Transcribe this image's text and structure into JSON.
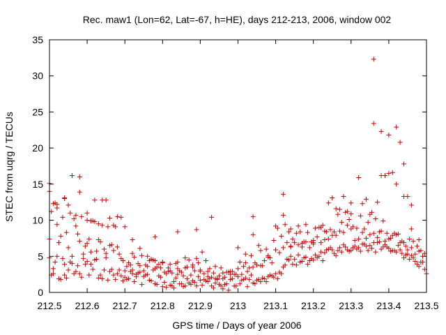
{
  "chart_data": {
    "type": "scatter",
    "title": "Rec. maw1 (Lon=62, Lat=-67, h=HE), days 212-213, 2006, window 002",
    "xlabel": "GPS time / Days of year 2006",
    "ylabel": "STEC from uqrg / TECUs",
    "xlim": [
      212.5,
      213.5
    ],
    "ylim": [
      0,
      35
    ],
    "xticks": [
      "212.5",
      "212.6",
      "212.7",
      "212.8",
      "212.9",
      "213",
      "213.1",
      "213.2",
      "213.3",
      "213.4",
      "213.5"
    ],
    "yticks": [
      "0",
      "5",
      "10",
      "15",
      "20",
      "25",
      "30",
      "35"
    ],
    "grid": false,
    "marker": "plus",
    "color": "#cc0000",
    "series": [
      {
        "x": [
          212.5,
          212.51,
          212.52,
          212.53,
          212.54,
          212.55,
          212.56,
          212.57,
          212.58,
          212.59,
          212.6,
          212.61,
          212.62,
          212.63,
          212.64,
          212.65,
          212.66,
          212.67,
          212.68,
          212.69,
          212.7,
          212.71,
          212.72,
          212.73,
          212.74,
          212.75,
          212.76,
          212.77,
          212.78,
          212.79,
          212.8,
          212.81,
          212.82,
          212.83,
          212.84,
          212.85,
          212.86,
          212.87,
          212.88,
          212.89,
          212.9,
          212.91,
          212.92,
          212.93,
          212.94,
          212.95,
          212.96,
          212.97,
          212.98,
          212.99,
          213.0,
          213.01,
          213.02,
          213.03,
          213.04,
          213.05,
          213.06,
          213.07,
          213.08,
          213.09,
          213.1,
          213.11,
          213.12,
          213.13,
          213.14,
          213.15,
          213.16,
          213.17,
          213.18,
          213.19,
          213.2,
          213.21,
          213.22,
          213.23,
          213.24,
          213.25,
          213.26,
          213.27,
          213.28,
          213.29,
          213.3,
          213.31,
          213.32,
          213.33,
          213.34,
          213.35,
          213.36,
          213.37,
          213.38,
          213.39,
          213.4,
          213.41,
          213.42,
          213.43,
          213.44,
          213.45,
          213.46,
          213.47,
          213.48,
          213.49,
          213.5,
          212.5,
          212.51,
          212.52,
          212.53,
          212.54,
          212.55,
          212.56,
          212.57,
          212.58,
          212.59,
          212.6,
          212.61,
          212.62,
          212.63,
          212.64,
          212.65,
          212.66,
          212.67,
          212.68,
          212.69,
          212.7,
          212.71,
          212.72,
          212.73,
          212.74,
          212.75,
          212.76,
          212.77,
          212.78,
          212.79,
          212.8,
          212.81,
          212.82,
          212.83,
          212.84,
          212.85,
          212.86,
          212.87,
          212.88,
          212.89,
          212.9,
          212.91,
          212.92,
          212.93,
          212.94,
          212.95,
          212.96,
          212.97,
          212.98,
          212.99,
          213.0,
          213.01,
          213.02,
          213.03,
          213.04,
          213.05,
          213.06,
          213.07,
          213.08,
          213.09,
          213.1,
          213.11,
          213.12,
          213.13,
          213.14,
          213.15,
          213.16,
          213.17,
          213.18,
          213.19,
          213.2,
          213.21,
          213.22,
          213.23,
          213.24,
          213.25,
          213.26,
          213.27,
          213.28,
          213.29,
          213.3,
          213.31,
          213.32,
          213.33,
          213.34,
          213.35,
          213.36,
          213.37,
          213.38,
          213.39,
          213.4,
          213.41,
          213.42,
          213.43,
          213.44,
          213.45,
          213.46,
          213.47,
          213.48,
          213.49,
          212.505,
          212.515,
          212.525,
          212.535,
          212.545,
          212.555,
          212.565,
          212.575,
          212.585,
          212.595,
          212.605,
          212.615,
          212.625,
          212.635,
          212.645,
          212.655,
          212.665,
          212.675,
          212.685,
          212.695,
          212.705,
          212.715,
          212.725,
          212.735,
          212.745,
          212.755,
          212.765,
          212.775,
          212.785,
          212.795,
          212.805,
          212.815,
          212.825,
          212.835,
          212.845,
          212.855,
          212.865,
          212.875,
          212.885,
          212.895,
          212.905,
          212.915,
          212.925,
          212.935,
          212.945,
          212.955,
          212.965,
          212.975,
          212.985,
          212.995,
          213.005,
          213.015,
          213.025,
          213.035,
          213.045,
          213.055,
          213.065,
          213.075,
          213.085,
          213.095,
          213.105,
          213.115,
          213.125,
          213.135,
          213.145,
          213.155,
          213.165,
          213.175,
          213.185,
          213.195,
          213.205,
          213.215,
          213.225,
          213.235,
          213.245,
          213.255,
          213.265,
          213.275,
          213.285,
          213.295,
          213.305,
          213.315,
          213.325,
          213.335,
          213.345,
          213.355,
          213.365,
          213.375,
          213.385,
          213.395,
          213.405,
          213.415,
          213.425,
          213.435,
          213.445,
          213.455,
          213.465,
          213.475,
          213.485,
          213.495,
          212.505,
          212.515,
          212.525,
          212.535,
          212.545,
          212.555,
          212.565,
          212.575,
          212.585,
          212.595,
          212.605,
          212.615,
          212.625,
          212.635,
          212.645,
          212.655,
          212.665,
          212.675,
          212.685,
          212.695,
          212.705,
          212.715,
          212.725,
          212.735,
          212.745,
          212.755,
          212.765,
          212.775,
          212.785,
          212.795,
          212.805,
          212.815,
          212.825,
          212.835,
          212.845,
          212.855,
          212.865,
          212.875,
          212.885,
          212.895,
          212.905,
          212.915,
          212.925,
          212.935,
          212.945,
          212.955,
          212.965,
          212.975,
          212.985,
          212.995,
          213.005,
          213.015,
          213.025,
          213.035,
          213.045,
          213.055,
          213.065,
          213.075,
          213.085,
          213.095,
          213.105,
          213.115,
          213.125,
          213.135,
          213.145,
          213.155,
          213.165,
          213.175,
          213.185,
          213.195,
          213.205,
          213.215,
          213.225,
          213.235,
          213.245,
          213.255,
          213.265,
          213.275,
          213.285,
          213.295,
          213.305,
          213.315,
          213.325,
          213.335,
          213.345,
          213.355,
          213.365,
          213.375,
          213.385,
          213.395,
          213.405,
          213.415,
          213.425,
          213.435,
          213.445,
          213.455,
          213.465,
          213.475,
          213.485,
          213.495,
          212.5,
          212.52,
          212.54,
          212.56,
          212.58,
          212.6,
          212.62,
          212.64,
          212.66,
          212.68,
          212.7,
          212.72,
          212.74,
          212.76,
          212.78,
          212.8,
          212.82,
          212.84,
          212.86,
          212.88,
          212.9,
          212.92,
          212.94,
          212.96,
          212.98,
          213.0,
          213.02,
          213.04,
          213.06,
          213.08,
          213.1,
          213.12,
          213.14,
          213.16,
          213.18,
          213.2,
          213.22,
          213.24,
          213.26,
          213.28,
          213.3,
          213.32,
          213.34,
          213.36,
          213.38,
          213.4,
          213.42,
          213.44,
          213.46,
          213.48,
          212.5,
          212.51,
          212.52,
          212.54,
          212.55,
          212.57,
          212.58,
          212.6,
          212.61,
          212.63,
          212.65,
          212.67,
          212.69,
          212.72,
          212.78,
          212.84,
          212.89,
          212.93,
          213.04,
          213.1,
          213.12,
          213.14,
          213.17,
          213.2,
          213.23,
          213.25,
          213.27,
          213.29,
          213.3,
          213.33,
          213.35,
          213.36,
          213.37,
          213.38,
          213.39,
          213.4,
          213.41,
          213.42,
          213.43,
          213.44,
          213.45,
          213.46
        ],
        "y": [
          4.8,
          2.6,
          5.0,
          1.8,
          2.4,
          3.1,
          4.0,
          2.9,
          2.6,
          4.7,
          4.3,
          3.9,
          4.5,
          2.0,
          1.9,
          4.8,
          2.9,
          2.4,
          2.6,
          2.3,
          2.1,
          1.9,
          2.6,
          2.2,
          2.8,
          2.2,
          2.5,
          1.6,
          1.2,
          2.3,
          0.8,
          0.7,
          1.0,
          0.6,
          2.5,
          1.2,
          0.9,
          1.3,
          1.6,
          0.9,
          1.7,
          1.8,
          1.5,
          0.9,
          1.3,
          1.1,
          0.5,
          1.2,
          1.8,
          0.9,
          2.2,
          1.7,
          2.0,
          1.8,
          1.3,
          1.7,
          1.5,
          1.9,
          2.2,
          2.3,
          2.6,
          2.8,
          3.5,
          4.6,
          5.0,
          4.6,
          5.2,
          4.3,
          4.9,
          4.4,
          4.5,
          4.8,
          5.6,
          5.5,
          6.0,
          5.9,
          5.1,
          6.2,
          6.6,
          5.9,
          5.8,
          6.4,
          6.2,
          6.7,
          6.4,
          6.5,
          6.9,
          6.9,
          6.0,
          6.6,
          6.1,
          5.8,
          5.6,
          5.9,
          4.8,
          5.3,
          5.1,
          4.3,
          3.6,
          4.2,
          2.6,
          7.4,
          3.3,
          9.4,
          7.8,
          3.9,
          6.2,
          5.0,
          9.2,
          7.1,
          5.3,
          6.8,
          5.6,
          9.8,
          7.3,
          9.3,
          5.4,
          6.5,
          5.8,
          6.3,
          4.7,
          3.0,
          4.1,
          3.1,
          2.5,
          3.7,
          3.0,
          3.6,
          4.6,
          3.3,
          3.9,
          4.1,
          2.6,
          3.0,
          1.5,
          4.2,
          2.8,
          3.4,
          4.5,
          3.5,
          4.7,
          3.1,
          2.6,
          2.9,
          2.1,
          1.9,
          2.3,
          1.9,
          2.8,
          2.9,
          2.5,
          3.3,
          2.5,
          4.1,
          3.4,
          3.5,
          3.8,
          3.7,
          4.4,
          4.9,
          4.1,
          5.9,
          5.5,
          6.2,
          6.9,
          6.4,
          6.9,
          6.6,
          6.3,
          7.0,
          6.2,
          6.9,
          7.7,
          6.9,
          7.3,
          7.4,
          7.9,
          7.9,
          8.5,
          8.3,
          9.3,
          8.8,
          7.2,
          7.4,
          8.3,
          7.5,
          8.0,
          8.2,
          7.6,
          8.5,
          7.1,
          7.4,
          7.9,
          8.0,
          6.9,
          6.9,
          5.9,
          6.2,
          5.3,
          5.7,
          5.0,
          2.4,
          4.2,
          1.9,
          4.7,
          2.0,
          4.2,
          2.6,
          3.7,
          2.1,
          3.9,
          2.4,
          3.2,
          4.6,
          2.4,
          3.1,
          1.7,
          3.2,
          1.8,
          3.1,
          1.6,
          1.8,
          2.9,
          1.5,
          2.7,
          1.1,
          2.4,
          1.7,
          3.1,
          1.1,
          2.1,
          1.4,
          2.9,
          0.9,
          2.0,
          1.2,
          0.8,
          1.9,
          1.1,
          1.4,
          2.2,
          1.0,
          1.6,
          1.9,
          0.6,
          1.8,
          0.9,
          1.1,
          0.3,
          1.9,
          0.9,
          1.2,
          1.8,
          0.8,
          2.4,
          1.2,
          1.8,
          2.0,
          1.5,
          2.4,
          2.1,
          1.9,
          2.6,
          3.8,
          4.5,
          3.9,
          3.8,
          4.2,
          4.8,
          3.9,
          4.7,
          5.2,
          5.0,
          4.4,
          5.9,
          6.2,
          5.4,
          5.8,
          5.6,
          6.3,
          5.7,
          6.2,
          6.0,
          5.7,
          6.7,
          5.8,
          6.1,
          5.6,
          7.0,
          6.3,
          6.3,
          5.7,
          5.8,
          6.5,
          5.4,
          5.2,
          4.6,
          4.8,
          3.9,
          4.2,
          3.2,
          11.2,
          12.4,
          6.9,
          10.4,
          8.3,
          11.0,
          10.2,
          8.1,
          10.5,
          6.4,
          7.4,
          9.9,
          5.7,
          7.0,
          6.0,
          9.1,
          6.6,
          9.1,
          5.3,
          4.4,
          3.6,
          3.8,
          4.9,
          4.0,
          5.1,
          3.8,
          4.4,
          4.5,
          3.5,
          3.4,
          2.8,
          3.4,
          2.7,
          4.0,
          3.0,
          2.3,
          3.5,
          2.4,
          3.0,
          4.1,
          5.6,
          4.4,
          3.3,
          2.7,
          1.9,
          3.4,
          2.1,
          2.8,
          2.9,
          2.5,
          4.2,
          3.6,
          2.9,
          5.1,
          4.1,
          6.5,
          3.7,
          6.0,
          4.8,
          7.2,
          8.9,
          7.8,
          9.4,
          8.4,
          7.4,
          8.2,
          8.4,
          7.0,
          8.3,
          7.0,
          8.9,
          9.0,
          9.3,
          8.4,
          8.7,
          8.4,
          10.8,
          9.7,
          11.1,
          10.1,
          9.1,
          8.9,
          10.6,
          8.8,
          9.7,
          11.1,
          10.2,
          8.4,
          9.9,
          8.2,
          7.5,
          8.2,
          8.1,
          7.1,
          6.4,
          7.4,
          7.1,
          6.4,
          5.8,
          5.4,
          15.1,
          12.2,
          13.1,
          16.2,
          16.0,
          10.0,
          12.8,
          12.8,
          10.3,
          10.5,
          9.1,
          5.4,
          6.1,
          5.0,
          4.4,
          4.2,
          3.9,
          3.3,
          4.8,
          3.8,
          2.9,
          2.2,
          3.6,
          2.7,
          2.5,
          6.2,
          5.3,
          10.5,
          5.8,
          5.1,
          5.9,
          10.7,
          8.8,
          9.2,
          9.4,
          6.7,
          9.0,
          12.4,
          11.6,
          13.3,
          10.9,
          15.9,
          12.9,
          32.3,
          16.2,
          16.5,
          15.0,
          13.3,
          8.8,
          7.3,
          14.0,
          12.3,
          11.7,
          13.0,
          12.1,
          10.7,
          13.9,
          11.0,
          9.9,
          9.5,
          12.8,
          9.3,
          10.4,
          7.3,
          7.7,
          8.4,
          8.7,
          10.4,
          8.0,
          9.2,
          13.6,
          6.3,
          6.8,
          7.2,
          8.5,
          13.1,
          11.5,
          11.2,
          12.4,
          12.3,
          10.8,
          23.4,
          12.5,
          22.3,
          16.2,
          21.8,
          16.6,
          22.9,
          20.8,
          17.8,
          13.3,
          12.1
        ]
      }
    ]
  }
}
